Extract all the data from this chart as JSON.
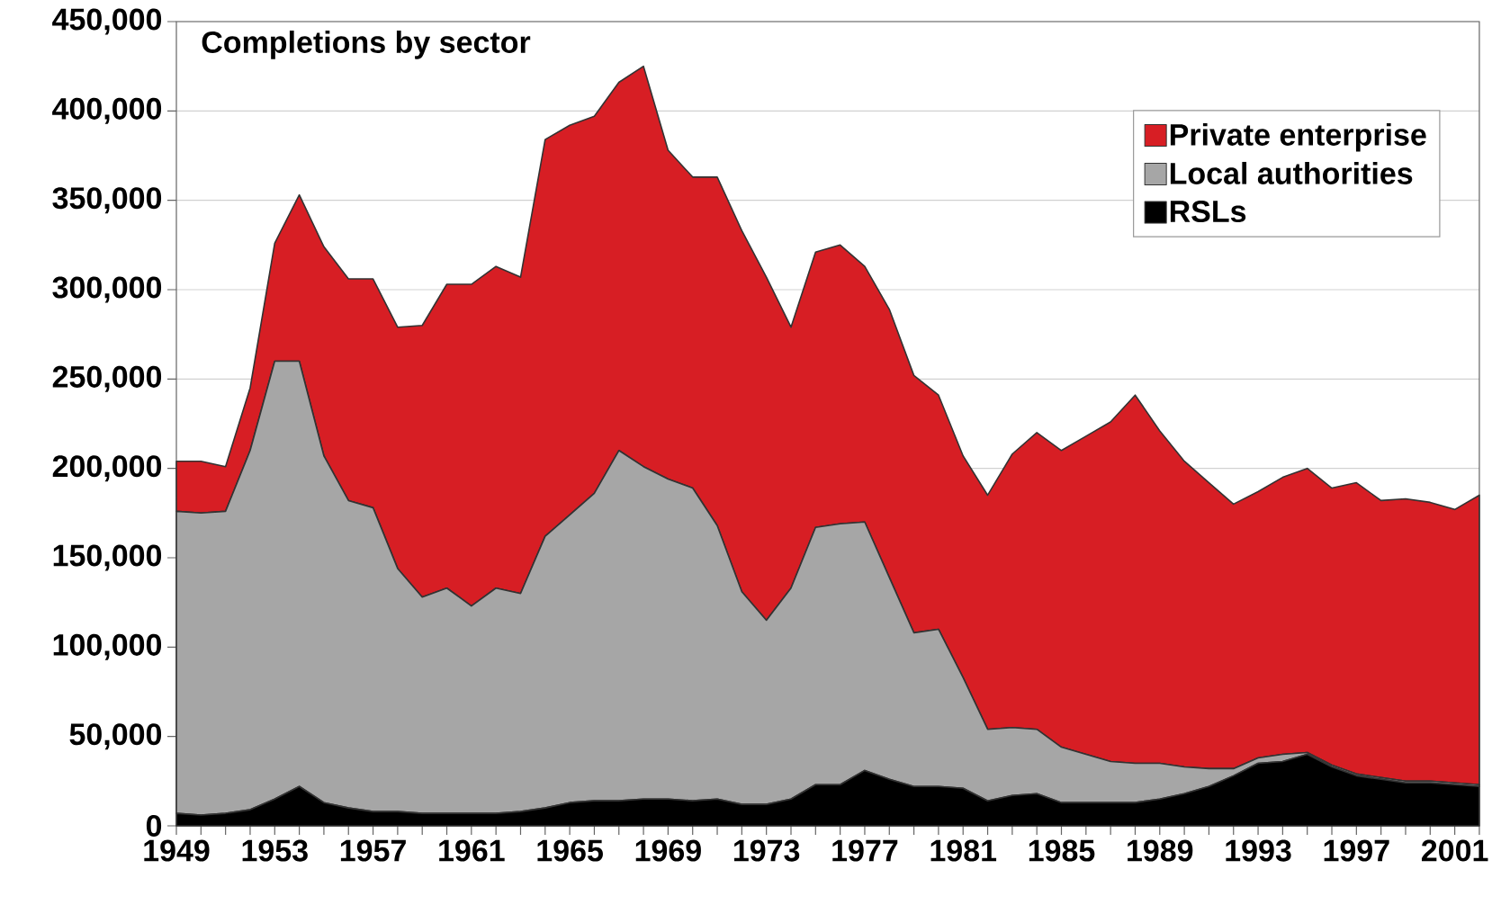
{
  "chart_data": {
    "type": "area",
    "title": "Completions by sector",
    "stacked": true,
    "grid": "y",
    "legend": "top right",
    "categories": [
      "1949",
      null,
      null,
      null,
      "1953",
      null,
      null,
      null,
      "1957",
      null,
      null,
      null,
      "1961",
      null,
      null,
      null,
      "1965",
      null,
      null,
      null,
      "1969",
      null,
      null,
      null,
      "1973",
      null,
      null,
      null,
      "1977",
      null,
      null,
      null,
      "1981",
      null,
      null,
      null,
      "1985",
      null,
      null,
      null,
      "1989",
      null,
      null,
      null,
      "1993",
      null,
      null,
      null,
      "1997",
      null,
      null,
      null,
      "2001",
      null
    ],
    "ylim": [
      0,
      450000
    ],
    "yticks": [
      {
        "value": 0,
        "label": "0"
      },
      {
        "value": 50000,
        "label": "50,000"
      },
      {
        "value": 100000,
        "label": "100,000"
      },
      {
        "value": 150000,
        "label": "150,000"
      },
      {
        "value": 200000,
        "label": "200,000"
      },
      {
        "value": 250000,
        "label": "250,000"
      },
      {
        "value": 300000,
        "label": "300,000"
      },
      {
        "value": 350000,
        "label": "350,000"
      },
      {
        "value": 400000,
        "label": "400,000"
      },
      {
        "value": 450000,
        "label": "450,000"
      }
    ],
    "series": [
      {
        "name": "RSLs",
        "color": "#000000",
        "values": [
          7000,
          6000,
          7000,
          9000,
          15000,
          22000,
          13000,
          10000,
          8000,
          8000,
          7000,
          7000,
          7000,
          7000,
          8000,
          10000,
          13000,
          14000,
          14000,
          15000,
          15000,
          14000,
          15000,
          12000,
          12000,
          15000,
          23000,
          23000,
          31000,
          26000,
          22000,
          22000,
          21000,
          14000,
          17000,
          18000,
          13000,
          13000,
          13000,
          13000,
          15000,
          18000,
          22000,
          28000,
          35000,
          36000,
          40000,
          33000,
          28000,
          26000,
          24000,
          24000,
          23000,
          22000
        ]
      },
      {
        "name": "Local authorities",
        "color": "#a6a6a6",
        "values": [
          169000,
          169000,
          169000,
          201000,
          245000,
          238000,
          194000,
          172000,
          170000,
          136000,
          121000,
          126000,
          116000,
          126000,
          122000,
          152000,
          161000,
          172000,
          196000,
          186000,
          179000,
          175000,
          153000,
          119000,
          103000,
          118000,
          144000,
          146000,
          139000,
          113000,
          86000,
          88000,
          62000,
          40000,
          38000,
          36000,
          31000,
          27000,
          23000,
          22000,
          20000,
          15000,
          10000,
          4000,
          3000,
          4000,
          1000,
          1000,
          1000,
          1000,
          1000,
          1000,
          1000,
          1000
        ]
      },
      {
        "name": "Private enterprise",
        "color": "#d71e24",
        "values": [
          28000,
          29000,
          25000,
          35000,
          66000,
          93000,
          117000,
          124000,
          128000,
          135000,
          152000,
          170000,
          180000,
          180000,
          177000,
          222000,
          218000,
          211000,
          206000,
          224000,
          184000,
          174000,
          195000,
          202000,
          192000,
          146000,
          154000,
          156000,
          143000,
          150000,
          144000,
          131000,
          124000,
          131000,
          153000,
          166000,
          166000,
          178000,
          190000,
          206000,
          186000,
          171000,
          160000,
          148000,
          149000,
          155000,
          159000,
          155000,
          163000,
          155000,
          158000,
          156000,
          153000,
          162000
        ]
      }
    ]
  }
}
